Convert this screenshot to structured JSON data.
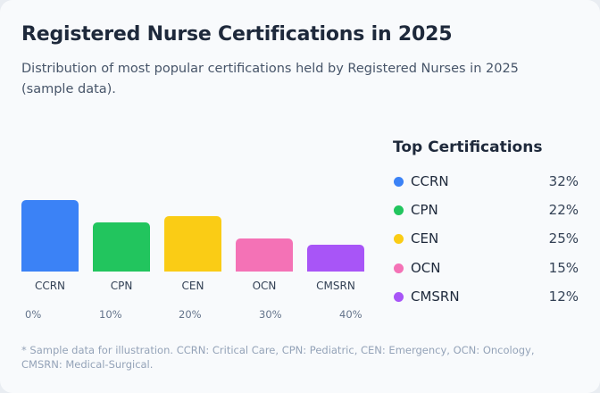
{
  "title": "Registered Nurse Certifications in 2025",
  "subtitle": "Distribution of most popular certifications held by Registered Nurses in 2025 (sample data).",
  "footnote": "* Sample data for illustration. CCRN: Critical Care, CPN: Pediatric, CEN: Emergency, OCN: Oncology, CMSRN: Medical-Surgical.",
  "legend": {
    "title": "Top Certifications"
  },
  "chart_data": {
    "type": "bar",
    "categories": [
      "CCRN",
      "CPN",
      "CEN",
      "OCN",
      "CMSRN"
    ],
    "values": [
      32,
      22,
      25,
      15,
      12
    ],
    "value_labels": [
      "32%",
      "22%",
      "25%",
      "15%",
      "12%"
    ],
    "colors": [
      "#3b82f6",
      "#22c55e",
      "#facc15",
      "#f472b6",
      "#a855f7"
    ],
    "ticks": [
      "0%",
      "10%",
      "20%",
      "30%",
      "40%"
    ],
    "ylim": [
      0,
      40
    ],
    "grid": false,
    "legend_position": "right"
  }
}
